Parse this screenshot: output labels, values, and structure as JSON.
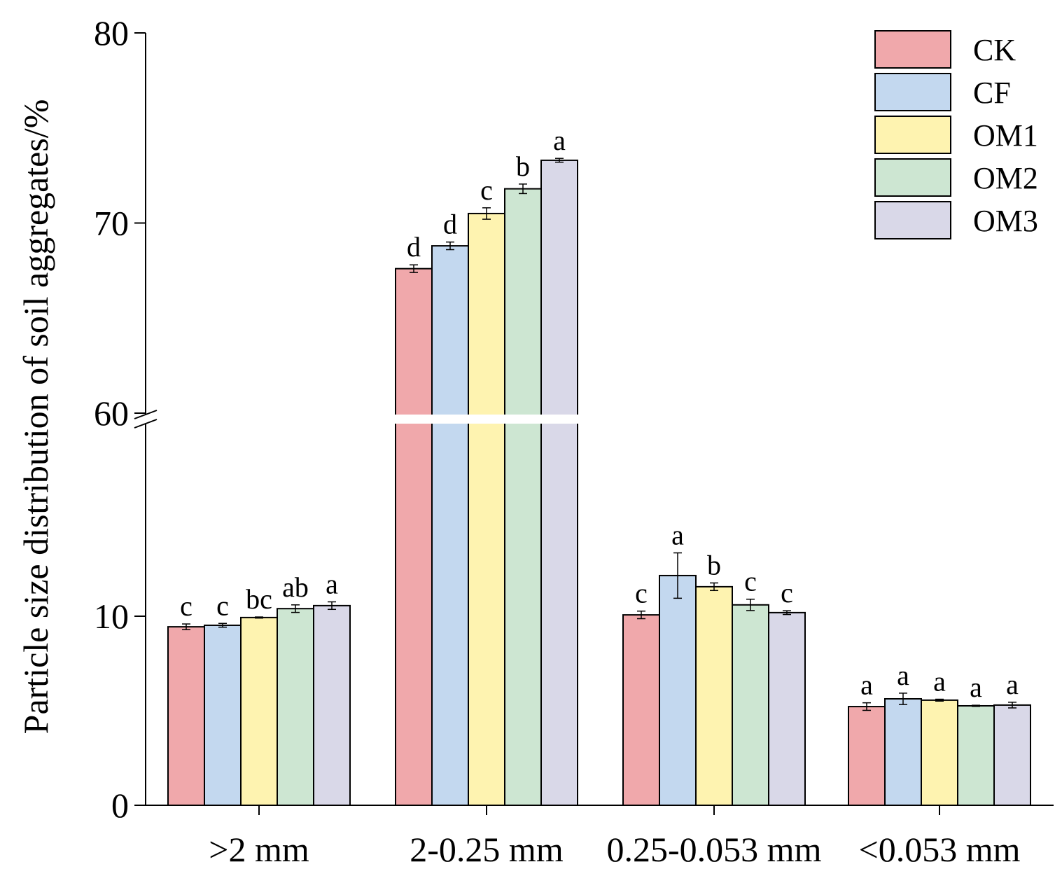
{
  "chart_data": {
    "type": "bar",
    "title": "",
    "xlabel": "",
    "ylabel": "Particle size distribution of soil aggregates/%",
    "categories": [
      ">2 mm",
      "2-0.25 mm",
      "0.25-0.053 mm",
      "<0.053 mm"
    ],
    "axis_break": [
      20,
      60
    ],
    "ylim": [
      0,
      80
    ],
    "yticks": [
      "0",
      "10",
      "60",
      "70",
      "80"
    ],
    "grid": false,
    "legend_position": "top-right",
    "series": [
      {
        "name": "CK",
        "color": "#f0a8ab",
        "values": [
          9.44,
          67.6,
          10.07,
          5.22
        ],
        "errors": [
          0.15,
          0.2,
          0.2,
          0.2
        ],
        "letters": [
          "c",
          "d",
          "c",
          "a"
        ]
      },
      {
        "name": "CF",
        "color": "#c3d8ef",
        "values": [
          9.52,
          68.8,
          12.15,
          5.63
        ],
        "errors": [
          0.1,
          0.2,
          1.2,
          0.3
        ],
        "letters": [
          "c",
          "d",
          "a",
          "a"
        ]
      },
      {
        "name": "OM1",
        "color": "#fef3b0",
        "values": [
          9.93,
          70.5,
          11.56,
          5.56
        ],
        "errors": [
          0.03,
          0.3,
          0.2,
          0.05
        ],
        "letters": [
          "bc",
          "c",
          "b",
          "a"
        ]
      },
      {
        "name": "OM2",
        "color": "#cde6d2",
        "values": [
          10.4,
          71.8,
          10.6,
          5.26
        ],
        "errors": [
          0.2,
          0.25,
          0.3,
          0.03
        ],
        "letters": [
          "ab",
          "b",
          "c",
          "a"
        ]
      },
      {
        "name": "OM3",
        "color": "#d9d8e8",
        "values": [
          10.56,
          73.3,
          10.19,
          5.3
        ],
        "errors": [
          0.2,
          0.1,
          0.1,
          0.15
        ],
        "letters": [
          "a",
          "a",
          "c",
          "a"
        ]
      }
    ]
  }
}
